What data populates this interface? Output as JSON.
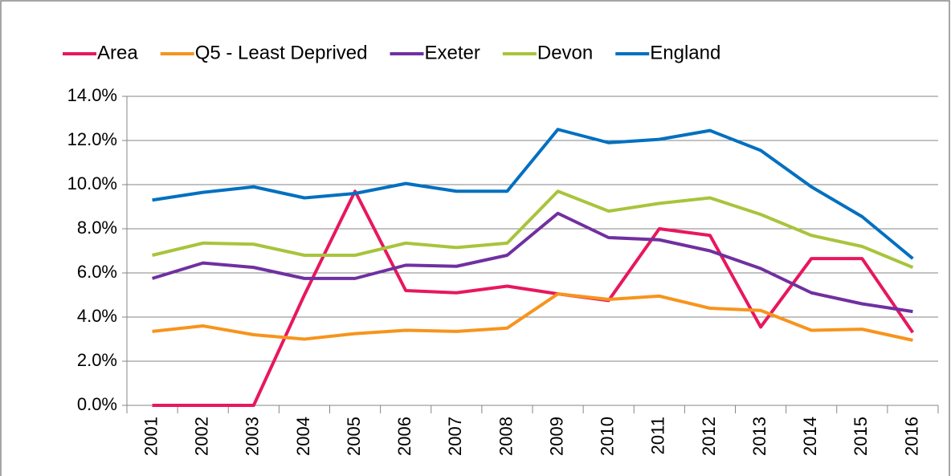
{
  "chart_data": {
    "type": "line",
    "categories": [
      "2001",
      "2002",
      "2003",
      "2004",
      "2005",
      "2006",
      "2007",
      "2008",
      "2009",
      "2010",
      "2011",
      "2012",
      "2013",
      "2014",
      "2015",
      "2016"
    ],
    "series": [
      {
        "name": "Area",
        "color": "#e8175d",
        "values": [
          0,
          0,
          0,
          5.0,
          9.7,
          5.2,
          5.1,
          5.4,
          5.05,
          4.75,
          8.0,
          7.7,
          3.55,
          6.65,
          6.65,
          3.3
        ]
      },
      {
        "name": "Q5 - Least Deprived",
        "color": "#f7941d",
        "values": [
          3.35,
          3.6,
          3.2,
          3.0,
          3.25,
          3.4,
          3.35,
          3.5,
          5.05,
          4.8,
          4.95,
          4.4,
          4.3,
          3.4,
          3.45,
          2.95
        ]
      },
      {
        "name": "Exeter",
        "color": "#7030a0",
        "values": [
          5.75,
          6.45,
          6.25,
          5.75,
          5.75,
          6.35,
          6.3,
          6.8,
          8.7,
          7.6,
          7.5,
          7.0,
          6.2,
          5.1,
          4.6,
          4.25
        ]
      },
      {
        "name": "Devon",
        "color": "#a8c43c",
        "values": [
          6.8,
          7.35,
          7.3,
          6.8,
          6.8,
          7.35,
          7.15,
          7.35,
          9.7,
          8.8,
          9.15,
          9.4,
          8.65,
          7.7,
          7.2,
          6.25
        ]
      },
      {
        "name": "England",
        "color": "#0070c0",
        "values": [
          9.3,
          9.65,
          9.9,
          9.4,
          9.6,
          10.05,
          9.7,
          9.7,
          12.5,
          11.9,
          12.05,
          12.45,
          11.55,
          9.9,
          8.55,
          6.65
        ]
      }
    ],
    "ylim": [
      0,
      14
    ],
    "yticks": [
      {
        "value": 0,
        "label": "0.0%"
      },
      {
        "value": 2,
        "label": "2.0%"
      },
      {
        "value": 4,
        "label": "4.0%"
      },
      {
        "value": 6,
        "label": "6.0%"
      },
      {
        "value": 8,
        "label": "8.0%"
      },
      {
        "value": 10,
        "label": "10.0%"
      },
      {
        "value": 12,
        "label": "12.0%"
      },
      {
        "value": 14,
        "label": "14.0%"
      }
    ],
    "grid": true,
    "legend": "top"
  }
}
